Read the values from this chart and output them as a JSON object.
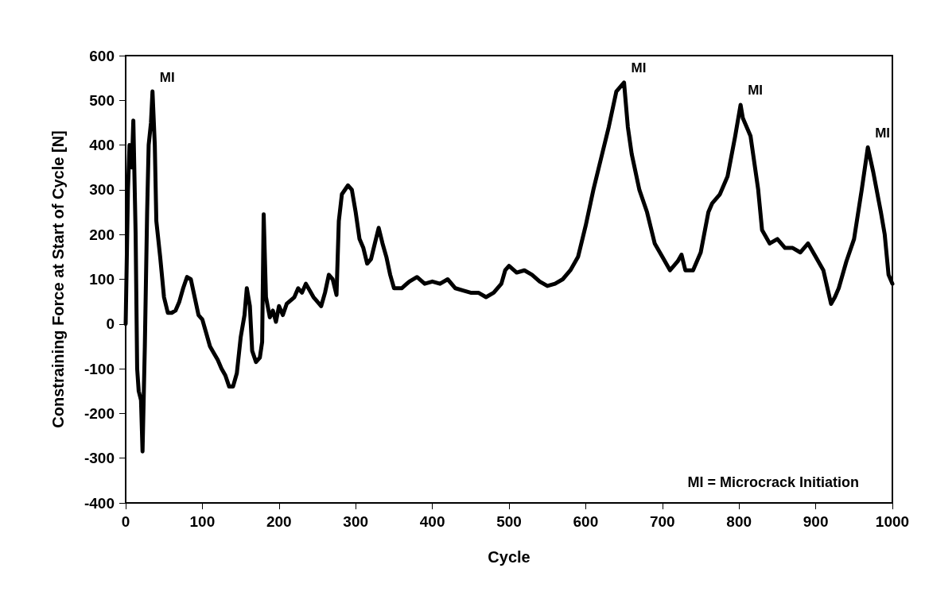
{
  "chart_data": {
    "type": "line",
    "xlabel": "Cycle",
    "ylabel": "Constraining Force at Start of Cycle [N]",
    "xlim": [
      0,
      1000
    ],
    "xticks": [
      0,
      100,
      200,
      300,
      400,
      500,
      600,
      700,
      800,
      900,
      1000
    ],
    "ylim": [
      -400,
      600
    ],
    "yticks": [
      -400,
      -300,
      -200,
      -100,
      0,
      100,
      200,
      300,
      400,
      500,
      600
    ],
    "grid": false,
    "marker": "none",
    "line_style": "solid",
    "annotations": [
      {
        "text": "MI",
        "x": 35,
        "y": 520
      },
      {
        "text": "MI",
        "x": 650,
        "y": 540
      },
      {
        "text": "MI",
        "x": 802,
        "y": 490
      },
      {
        "text": "MI",
        "x": 968,
        "y": 395
      },
      "MI = Microcrack Initiation"
    ],
    "series": [
      {
        "color": "#000000",
        "x": [
          0,
          3,
          5,
          8,
          10,
          13,
          15,
          17,
          20,
          22,
          25,
          28,
          30,
          33,
          35,
          38,
          40,
          45,
          50,
          55,
          60,
          65,
          70,
          75,
          80,
          85,
          90,
          95,
          100,
          105,
          110,
          115,
          120,
          125,
          130,
          135,
          140,
          145,
          150,
          155,
          158,
          162,
          165,
          170,
          175,
          178,
          180,
          183,
          188,
          192,
          196,
          200,
          205,
          210,
          220,
          225,
          230,
          235,
          240,
          245,
          250,
          255,
          260,
          265,
          270,
          275,
          278,
          282,
          290,
          295,
          300,
          305,
          310,
          315,
          320,
          325,
          330,
          335,
          340,
          345,
          350,
          360,
          370,
          380,
          390,
          400,
          410,
          420,
          430,
          440,
          450,
          460,
          470,
          480,
          490,
          495,
          500,
          510,
          520,
          530,
          540,
          550,
          560,
          570,
          580,
          590,
          600,
          610,
          620,
          630,
          640,
          650,
          655,
          660,
          670,
          680,
          690,
          700,
          710,
          720,
          725,
          730,
          740,
          750,
          760,
          765,
          775,
          785,
          795,
          802,
          805,
          815,
          825,
          830,
          840,
          850,
          860,
          870,
          880,
          890,
          900,
          910,
          920,
          925,
          930,
          940,
          950,
          960,
          968,
          975,
          985,
          990,
          995,
          1000
        ],
        "values": [
          0,
          300,
          400,
          350,
          455,
          200,
          -100,
          -150,
          -170,
          -285,
          -50,
          250,
          400,
          450,
          520,
          400,
          230,
          150,
          60,
          25,
          25,
          30,
          50,
          80,
          105,
          100,
          60,
          20,
          10,
          -20,
          -50,
          -65,
          -80,
          -100,
          -115,
          -140,
          -140,
          -110,
          -30,
          20,
          80,
          40,
          -60,
          -85,
          -75,
          -40,
          245,
          60,
          15,
          30,
          5,
          40,
          20,
          45,
          60,
          80,
          70,
          90,
          75,
          60,
          50,
          40,
          70,
          110,
          100,
          65,
          230,
          290,
          310,
          300,
          250,
          190,
          170,
          135,
          145,
          180,
          215,
          180,
          150,
          110,
          80,
          80,
          95,
          105,
          90,
          95,
          90,
          100,
          80,
          75,
          70,
          70,
          60,
          70,
          90,
          120,
          130,
          115,
          120,
          110,
          95,
          85,
          90,
          100,
          120,
          150,
          220,
          300,
          370,
          440,
          520,
          540,
          440,
          380,
          300,
          250,
          180,
          150,
          120,
          140,
          155,
          120,
          120,
          160,
          250,
          270,
          290,
          330,
          420,
          490,
          460,
          420,
          300,
          210,
          180,
          190,
          170,
          170,
          160,
          180,
          150,
          120,
          45,
          60,
          80,
          140,
          190,
          300,
          395,
          340,
          250,
          200,
          110,
          90
        ]
      }
    ]
  }
}
